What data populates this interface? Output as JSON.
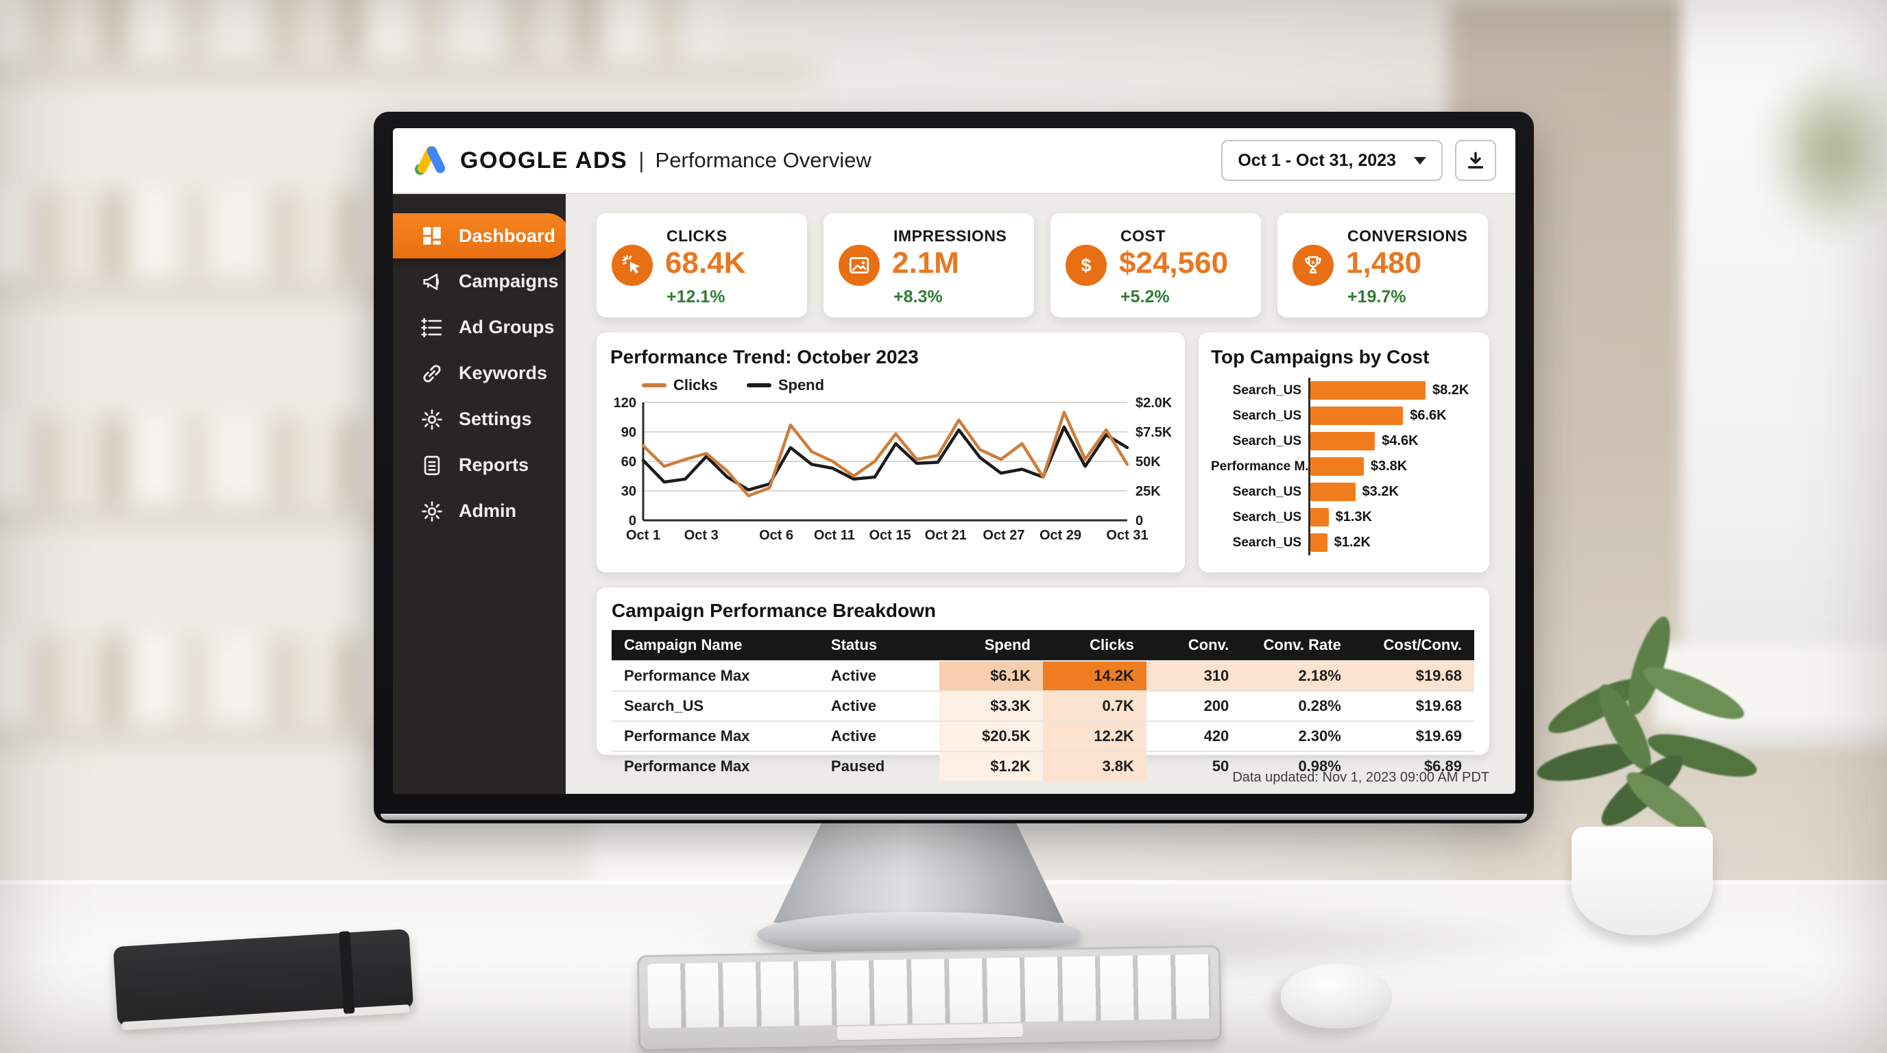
{
  "header": {
    "brand": "GOOGLE ADS",
    "pipe": "|",
    "subtitle": "Performance Overview",
    "date_range": "Oct 1 - Oct 31, 2023"
  },
  "sidebar": {
    "items": [
      {
        "label": "Dashboard",
        "icon": "dashboard-grid-icon",
        "active": true
      },
      {
        "label": "Campaigns",
        "icon": "megaphone-icon",
        "active": false
      },
      {
        "label": "Ad Groups",
        "icon": "ad-groups-list-icon",
        "active": false
      },
      {
        "label": "Keywords",
        "icon": "link-icon",
        "active": false
      },
      {
        "label": "Settings",
        "icon": "gear-icon",
        "active": false
      },
      {
        "label": "Reports",
        "icon": "report-doc-icon",
        "active": false
      },
      {
        "label": "Admin",
        "icon": "gear-icon",
        "active": false
      }
    ]
  },
  "kpis": [
    {
      "label": "CLICKS",
      "value": "68.4K",
      "delta": "+12.1%",
      "icon": "cursor-click-icon"
    },
    {
      "label": "IMPRESSIONS",
      "value": "2.1M",
      "delta": "+8.3%",
      "icon": "image-icon"
    },
    {
      "label": "COST",
      "value": "$24,560",
      "delta": "+5.2%",
      "icon": "dollar-icon"
    },
    {
      "label": "CONVERSIONS",
      "value": "1,480",
      "delta": "+19.7%",
      "icon": "trophy-icon"
    }
  ],
  "chart_data": [
    {
      "type": "line",
      "title": "Performance Trend: October 2023",
      "legend_position": "top-left",
      "grid": true,
      "series": [
        {
          "name": "Clicks",
          "color": "#cd7e3b",
          "values": [
            76,
            55,
            62,
            68,
            50,
            25,
            33,
            97,
            70,
            60,
            45,
            60,
            88,
            62,
            66,
            102,
            72,
            62,
            78,
            44,
            110,
            62,
            92,
            57
          ]
        },
        {
          "name": "Spend",
          "color": "#1b1b1b",
          "values": [
            61,
            39,
            42,
            65,
            44,
            31,
            37,
            74,
            57,
            53,
            42,
            44,
            78,
            58,
            59,
            92,
            64,
            48,
            52,
            44,
            95,
            55,
            87,
            74
          ]
        }
      ],
      "x_tick_labels": [
        "Oct 1",
        "Oct 3",
        "Oct 6",
        "Oct 11",
        "Oct 15",
        "Oct 21",
        "Oct 27",
        "Oct 29",
        "Oct 31"
      ],
      "y_left_ticks": [
        120,
        90,
        60,
        30,
        0
      ],
      "y_left_range": [
        0,
        120
      ],
      "y_right_tick_labels": [
        "$2.0K",
        "$7.5K",
        "50K",
        "25K",
        "0"
      ]
    },
    {
      "type": "bar",
      "orientation": "horizontal",
      "title": "Top Campaigns by Cost",
      "categories": [
        "Search_US",
        "Search_US",
        "Search_US",
        "Performance M...",
        "Search_US",
        "Search_US",
        "Search_US"
      ],
      "values": [
        8.2,
        6.6,
        4.6,
        3.8,
        3.2,
        1.3,
        1.2
      ],
      "value_labels": [
        "$8.2K",
        "$6.6K",
        "$4.6K",
        "$3.8K",
        "$3.2K",
        "$1.3K",
        "$1.2K"
      ],
      "bar_color": "#f07c1e",
      "xlim": [
        0,
        8.2
      ]
    }
  ],
  "table": {
    "title": "Campaign Performance Breakdown",
    "columns": [
      "Campaign Name",
      "Status",
      "Spend",
      "Clicks",
      "Conv.",
      "Conv. Rate",
      "Cost/Conv."
    ],
    "rows": [
      {
        "name": "Performance Max",
        "status": "Active",
        "spend": "$6.1K",
        "clicks": "14.2K",
        "conv": "310",
        "rate": "2.18%",
        "cost": "$19.68",
        "heat": {
          "spend": "med",
          "clicks": "strong",
          "conv": "light",
          "rate": "light",
          "cost": "light"
        }
      },
      {
        "name": "Search_US",
        "status": "Active",
        "spend": "$3.3K",
        "clicks": "0.7K",
        "conv": "200",
        "rate": "0.28%",
        "cost": "$19.68",
        "heat": {
          "spend": "faint",
          "clicks": "light"
        }
      },
      {
        "name": "Performance Max",
        "status": "Active",
        "spend": "$20.5K",
        "clicks": "12.2K",
        "conv": "420",
        "rate": "2.30%",
        "cost": "$19.69",
        "heat": {
          "spend": "faint",
          "clicks": "light"
        }
      },
      {
        "name": "Performance Max",
        "status": "Paused",
        "spend": "$1.2K",
        "clicks": "3.8K",
        "conv": "50",
        "rate": "0.98%",
        "cost": "$6.89",
        "heat": {
          "spend": "faint",
          "clicks": "light"
        }
      }
    ]
  },
  "footer": {
    "updated": "Data updated: Nov 1, 2023 09:00 AM PDT"
  },
  "colors": {
    "accent_orange": "#ef7c1e",
    "active_nav_orange": "#f07818",
    "kpi_value_orange": "#e87722",
    "delta_green": "#2e7d32",
    "line_clicks": "#cd7e3b",
    "line_spend": "#1b1b1b",
    "sidebar_bg": "#282624",
    "table_header_bg": "#171717"
  }
}
